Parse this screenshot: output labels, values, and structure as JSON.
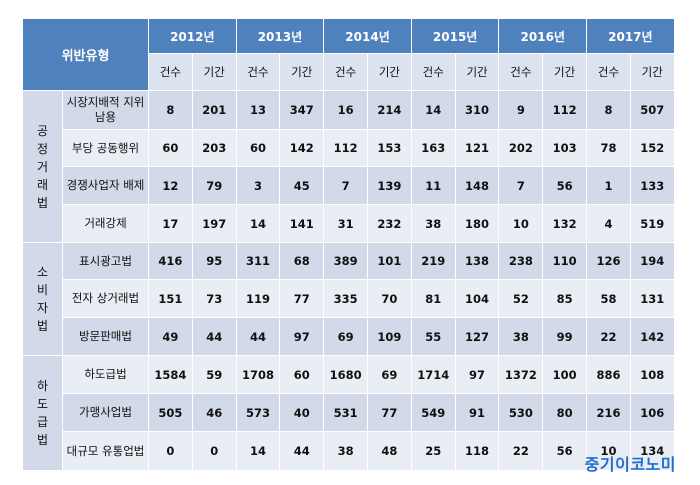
{
  "header": {
    "type_label": "위반유형",
    "years": [
      "2012년",
      "2013년",
      "2014년",
      "2015년",
      "2016년",
      "2017년"
    ],
    "sub_count": "건수",
    "sub_period": "기간"
  },
  "groups": [
    {
      "name": "공정거래법",
      "rows": [
        {
          "type": "시장지배적 지위남용",
          "values": [
            "8",
            "201",
            "13",
            "347",
            "16",
            "214",
            "14",
            "310",
            "9",
            "112",
            "8",
            "507"
          ]
        },
        {
          "type": "부당 공동행위",
          "values": [
            "60",
            "203",
            "60",
            "142",
            "112",
            "153",
            "163",
            "121",
            "202",
            "103",
            "78",
            "152"
          ]
        },
        {
          "type": "경쟁사업자 배제",
          "values": [
            "12",
            "79",
            "3",
            "45",
            "7",
            "139",
            "11",
            "148",
            "7",
            "56",
            "1",
            "133"
          ]
        },
        {
          "type": "거래강제",
          "values": [
            "17",
            "197",
            "14",
            "141",
            "31",
            "232",
            "38",
            "180",
            "10",
            "132",
            "4",
            "519"
          ]
        }
      ]
    },
    {
      "name": "소비자법",
      "rows": [
        {
          "type": "표시광고법",
          "values": [
            "416",
            "95",
            "311",
            "68",
            "389",
            "101",
            "219",
            "138",
            "238",
            "110",
            "126",
            "194"
          ]
        },
        {
          "type": "전자 상거래법",
          "values": [
            "151",
            "73",
            "119",
            "77",
            "335",
            "70",
            "81",
            "104",
            "52",
            "85",
            "58",
            "131"
          ]
        },
        {
          "type": "방문판매법",
          "values": [
            "49",
            "44",
            "44",
            "97",
            "69",
            "109",
            "55",
            "127",
            "38",
            "99",
            "22",
            "142"
          ]
        }
      ]
    },
    {
      "name": "하도급법",
      "rows": [
        {
          "type": "하도급법",
          "values": [
            "1584",
            "59",
            "1708",
            "60",
            "1680",
            "69",
            "1714",
            "97",
            "1372",
            "100",
            "886",
            "108"
          ]
        },
        {
          "type": "가맹사업법",
          "values": [
            "505",
            "46",
            "573",
            "40",
            "531",
            "77",
            "549",
            "91",
            "530",
            "80",
            "216",
            "106"
          ]
        },
        {
          "type": "대규모 유통업법",
          "values": [
            "0",
            "0",
            "14",
            "44",
            "38",
            "48",
            "25",
            "118",
            "22",
            "56",
            "10",
            "134"
          ]
        }
      ]
    }
  ],
  "logo": "중기이코노미"
}
